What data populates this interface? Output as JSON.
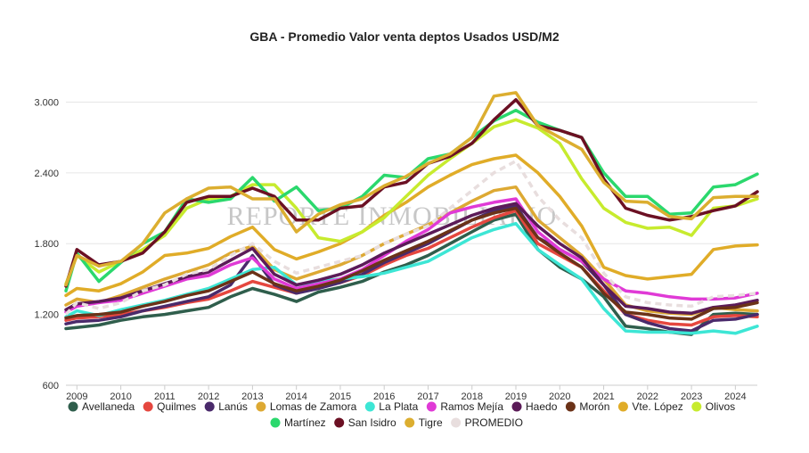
{
  "chart_data": {
    "type": "line",
    "title": "GBA - Promedio Valor venta deptos Usados USD/M2",
    "watermark": "REPORTE INMOBILIARIO",
    "xlabel": "",
    "ylabel": "",
    "xlim": [
      2008.75,
      2024.5
    ],
    "ylim": [
      600,
      3200
    ],
    "y_ticks": [
      600,
      1200,
      1800,
      2400,
      3000
    ],
    "y_tick_labels": [
      "600",
      "1.200",
      "1.800",
      "2.400",
      "3.000"
    ],
    "x_ticks": [
      2009,
      2010,
      2011,
      2012,
      2013,
      2014,
      2015,
      2016,
      2017,
      2018,
      2019,
      2020,
      2021,
      2022,
      2023,
      2024
    ],
    "x_tick_labels": [
      "2009",
      "2010",
      "2011",
      "2012",
      "2013",
      "2014",
      "2015",
      "2016",
      "2017",
      "2018",
      "2019",
      "2020",
      "2021",
      "2022",
      "2023",
      "2024"
    ],
    "grid": {
      "horizontal": true,
      "vertical": false
    },
    "legend_position": "bottom",
    "x": [
      2008.75,
      2009,
      2009.5,
      2010,
      2010.5,
      2011,
      2011.5,
      2012,
      2012.5,
      2013,
      2013.5,
      2014,
      2014.5,
      2015,
      2015.5,
      2016,
      2016.5,
      2017,
      2017.5,
      2018,
      2018.5,
      2019,
      2019.5,
      2020,
      2020.5,
      2021,
      2021.5,
      2022,
      2022.5,
      2023,
      2023.5,
      2024,
      2024.5
    ],
    "series": [
      {
        "name": "Avellaneda",
        "color": "#2f5e4c",
        "dash": false,
        "values": [
          1080,
          1090,
          1110,
          1150,
          1180,
          1200,
          1230,
          1260,
          1350,
          1420,
          1370,
          1310,
          1390,
          1430,
          1480,
          1560,
          1620,
          1700,
          1800,
          1900,
          2000,
          2050,
          1750,
          1600,
          1500,
          1350,
          1100,
          1080,
          1050,
          1030,
          1200,
          1210,
          1200
        ]
      },
      {
        "name": "Quilmes",
        "color": "#e5473f",
        "dash": false,
        "values": [
          1150,
          1170,
          1180,
          1200,
          1230,
          1260,
          1300,
          1330,
          1400,
          1480,
          1430,
          1380,
          1430,
          1470,
          1530,
          1620,
          1700,
          1760,
          1850,
          1940,
          2020,
          2080,
          1800,
          1700,
          1600,
          1400,
          1200,
          1150,
          1120,
          1110,
          1180,
          1190,
          1180
        ]
      },
      {
        "name": "Lanús",
        "color": "#4a2a6b",
        "dash": false,
        "values": [
          1120,
          1140,
          1150,
          1180,
          1230,
          1270,
          1310,
          1350,
          1450,
          1700,
          1450,
          1380,
          1420,
          1470,
          1540,
          1640,
          1720,
          1800,
          1900,
          2000,
          2080,
          2120,
          1850,
          1750,
          1650,
          1450,
          1200,
          1130,
          1080,
          1060,
          1150,
          1160,
          1200
        ]
      },
      {
        "name": "Lomas de Zamora",
        "color": "#dda933",
        "dash": false,
        "values": [
          1280,
          1330,
          1300,
          1360,
          1430,
          1500,
          1560,
          1620,
          1720,
          1780,
          1580,
          1500,
          1560,
          1620,
          1700,
          1800,
          1880,
          1960,
          2060,
          2160,
          2250,
          2280,
          2000,
          1850,
          1700,
          1500,
          1280,
          1230,
          1210,
          1200,
          1260,
          1240,
          1230
        ]
      },
      {
        "name": "La Plata",
        "color": "#3de6d5",
        "dash": false,
        "values": [
          1180,
          1230,
          1190,
          1240,
          1280,
          1320,
          1370,
          1420,
          1500,
          1580,
          1600,
          1450,
          1480,
          1500,
          1520,
          1550,
          1600,
          1650,
          1750,
          1850,
          1920,
          1970,
          1750,
          1620,
          1500,
          1250,
          1060,
          1050,
          1050,
          1040,
          1060,
          1040,
          1100
        ]
      },
      {
        "name": "Ramos Mejía",
        "color": "#e03ad6",
        "dash": false,
        "values": [
          1220,
          1270,
          1300,
          1320,
          1380,
          1440,
          1500,
          1530,
          1620,
          1680,
          1500,
          1420,
          1460,
          1500,
          1580,
          1700,
          1820,
          1920,
          2060,
          2110,
          2150,
          2180,
          1900,
          1750,
          1650,
          1500,
          1400,
          1380,
          1350,
          1330,
          1330,
          1340,
          1380
        ]
      },
      {
        "name": "Haedo",
        "color": "#5b1b58",
        "dash": false,
        "values": [
          1240,
          1290,
          1310,
          1340,
          1400,
          1460,
          1520,
          1560,
          1660,
          1760,
          1540,
          1450,
          1490,
          1540,
          1620,
          1720,
          1800,
          1880,
          1960,
          2040,
          2100,
          2140,
          1950,
          1800,
          1680,
          1450,
          1270,
          1250,
          1220,
          1210,
          1260,
          1280,
          1320
        ]
      },
      {
        "name": "Morón",
        "color": "#6b3218",
        "dash": false,
        "values": [
          1170,
          1190,
          1200,
          1220,
          1270,
          1310,
          1360,
          1400,
          1480,
          1560,
          1460,
          1400,
          1440,
          1490,
          1570,
          1660,
          1740,
          1820,
          1910,
          2000,
          2060,
          2100,
          1850,
          1720,
          1600,
          1380,
          1220,
          1200,
          1170,
          1160,
          1250,
          1260,
          1300
        ]
      },
      {
        "name": "Vte. López",
        "color": "#e0ac28",
        "dash": false,
        "values": [
          1360,
          1420,
          1400,
          1460,
          1560,
          1700,
          1720,
          1760,
          1860,
          1940,
          1750,
          1670,
          1730,
          1800,
          1900,
          2040,
          2150,
          2280,
          2380,
          2470,
          2520,
          2550,
          2400,
          2200,
          1950,
          1600,
          1530,
          1500,
          1520,
          1540,
          1750,
          1780,
          1790
        ]
      },
      {
        "name": "Olivos",
        "color": "#c7eb2e",
        "dash": false,
        "values": [
          1460,
          1700,
          1560,
          1650,
          1750,
          1870,
          2100,
          2180,
          2200,
          2300,
          2300,
          2100,
          1850,
          1820,
          1900,
          2020,
          2200,
          2380,
          2520,
          2650,
          2790,
          2850,
          2780,
          2650,
          2350,
          2100,
          1980,
          1930,
          1940,
          1870,
          2100,
          2120,
          2180
        ]
      },
      {
        "name": "Martínez",
        "color": "#2bd86d",
        "dash": false,
        "values": [
          1400,
          1720,
          1480,
          1640,
          1800,
          1900,
          2180,
          2150,
          2180,
          2360,
          2160,
          2280,
          2080,
          2100,
          2200,
          2380,
          2360,
          2520,
          2560,
          2700,
          2840,
          2930,
          2830,
          2760,
          2700,
          2400,
          2200,
          2200,
          2050,
          2060,
          2280,
          2300,
          2390
        ]
      },
      {
        "name": "San Isidro",
        "color": "#6b1023",
        "dash": false,
        "values": [
          1440,
          1750,
          1620,
          1650,
          1720,
          1900,
          2150,
          2200,
          2200,
          2270,
          2200,
          2000,
          2000,
          2100,
          2120,
          2280,
          2320,
          2480,
          2540,
          2650,
          2850,
          3020,
          2800,
          2760,
          2700,
          2350,
          2100,
          2040,
          2000,
          2030,
          2080,
          2120,
          2240
        ]
      },
      {
        "name": "Tigre",
        "color": "#dcae30",
        "dash": false,
        "values": [
          1450,
          1700,
          1610,
          1650,
          1800,
          2060,
          2180,
          2270,
          2280,
          2180,
          2180,
          1900,
          2050,
          2130,
          2180,
          2290,
          2370,
          2480,
          2560,
          2700,
          3050,
          3080,
          2800,
          2700,
          2600,
          2320,
          2160,
          2150,
          2030,
          2010,
          2190,
          2200,
          2200
        ]
      },
      {
        "name": "PROMEDIO",
        "color": "#e8dede",
        "dash": true,
        "values": [
          1200,
          1300,
          1250,
          1300,
          1400,
          1450,
          1540,
          1580,
          1700,
          1800,
          1650,
          1550,
          1600,
          1650,
          1700,
          1800,
          1880,
          1950,
          2100,
          2250,
          2400,
          2500,
          2200,
          2000,
          1850,
          1550,
          1350,
          1300,
          1280,
          1270,
          1350,
          1360,
          1380
        ]
      }
    ]
  }
}
